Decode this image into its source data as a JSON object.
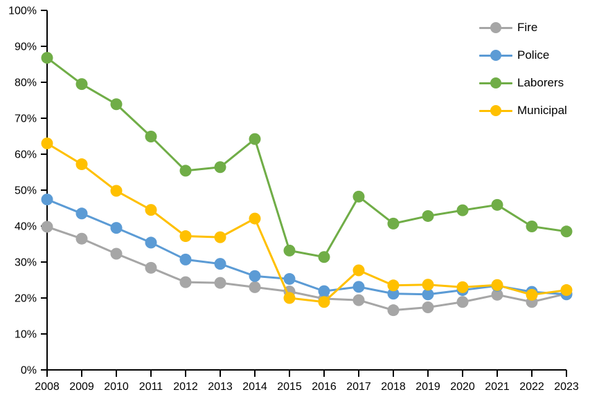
{
  "chart_data": {
    "type": "line",
    "title": "",
    "xlabel": "",
    "ylabel": "",
    "grid": false,
    "legend_position": "top-right",
    "ylim": [
      0,
      100
    ],
    "y_tick_step": 10,
    "y_tick_labels": [
      "0%",
      "10%",
      "20%",
      "30%",
      "40%",
      "50%",
      "60%",
      "70%",
      "80%",
      "90%",
      "100%"
    ],
    "categories": [
      "2008",
      "2009",
      "2010",
      "2011",
      "2012",
      "2013",
      "2014",
      "2015",
      "2016",
      "2017",
      "2018",
      "2019",
      "2020",
      "2021",
      "2022",
      "2023"
    ],
    "series": [
      {
        "name": "Fire",
        "color": "#a6a6a6",
        "values": [
          39.8,
          36.5,
          32.3,
          28.4,
          24.4,
          24.2,
          23.0,
          21.8,
          19.8,
          19.4,
          16.6,
          17.4,
          18.9,
          20.9,
          18.9,
          21.2
        ]
      },
      {
        "name": "Police",
        "color": "#5b9bd5",
        "values": [
          47.4,
          43.5,
          39.5,
          35.4,
          30.7,
          29.5,
          26.1,
          25.3,
          21.9,
          23.1,
          21.2,
          21.0,
          22.2,
          23.4,
          21.7,
          21.0
        ]
      },
      {
        "name": "Laborers",
        "color": "#70ad47",
        "values": [
          86.8,
          79.5,
          73.9,
          64.9,
          55.4,
          56.4,
          64.2,
          33.2,
          31.4,
          48.2,
          40.7,
          42.8,
          44.4,
          45.9,
          39.9,
          38.5
        ]
      },
      {
        "name": "Municipal",
        "color": "#ffc000",
        "values": [
          63.0,
          57.2,
          49.8,
          44.5,
          37.2,
          36.9,
          42.1,
          20.0,
          18.9,
          27.7,
          23.5,
          23.7,
          23.0,
          23.6,
          20.9,
          22.2
        ]
      }
    ],
    "axis_color": "#000000"
  }
}
